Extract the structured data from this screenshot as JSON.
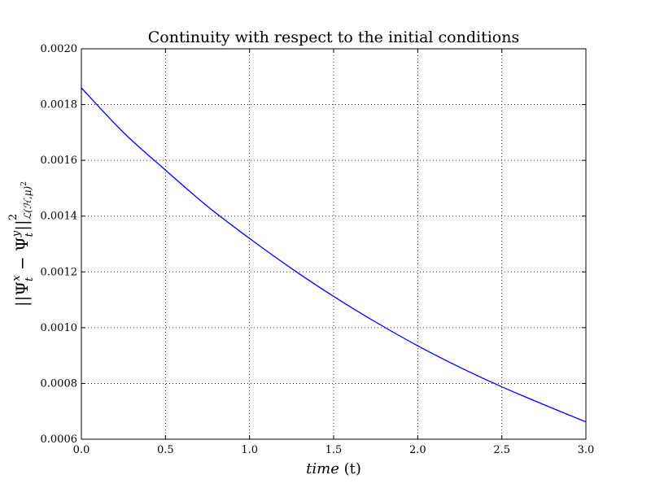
{
  "chart_data": {
    "type": "line",
    "title": "Continuity with respect to the initial conditions",
    "xlabel": {
      "italic": "time",
      "rest": " (t)"
    },
    "ylabel": {
      "main": "||Ψ",
      "sub1": "t",
      "sup1": "x",
      "mid": " − Ψ",
      "sub2": "t",
      "sup2": "y",
      "close": "||",
      "sub3": "ℒ(ℋ,μ)",
      "sup3": "2",
      "sup4": "2"
    },
    "xlim": [
      0.0,
      3.0
    ],
    "ylim": [
      0.0006,
      0.002
    ],
    "xticks": [
      0.0,
      0.5,
      1.0,
      1.5,
      2.0,
      2.5,
      3.0
    ],
    "xtick_labels": [
      "0.0",
      "0.5",
      "1.0",
      "1.5",
      "2.0",
      "2.5",
      "3.0"
    ],
    "yticks": [
      0.0006,
      0.0008,
      0.001,
      0.0012,
      0.0014,
      0.0016,
      0.0018,
      0.002
    ],
    "ytick_labels": [
      "0.0006",
      "0.0008",
      "0.0010",
      "0.0012",
      "0.0014",
      "0.0016",
      "0.0018",
      "0.0020"
    ],
    "grid": true,
    "series": [
      {
        "color": "#0000ff",
        "x": [
          0.0,
          0.25,
          0.5,
          0.75,
          1.0,
          1.25,
          1.5,
          1.75,
          2.0,
          2.25,
          2.5,
          2.75,
          3.0
        ],
        "y": [
          0.00186,
          0.0017,
          0.001565,
          0.001435,
          0.00132,
          0.001212,
          0.001112,
          0.00102,
          0.000935,
          0.000858,
          0.000788,
          0.000724,
          0.000662
        ]
      }
    ]
  }
}
